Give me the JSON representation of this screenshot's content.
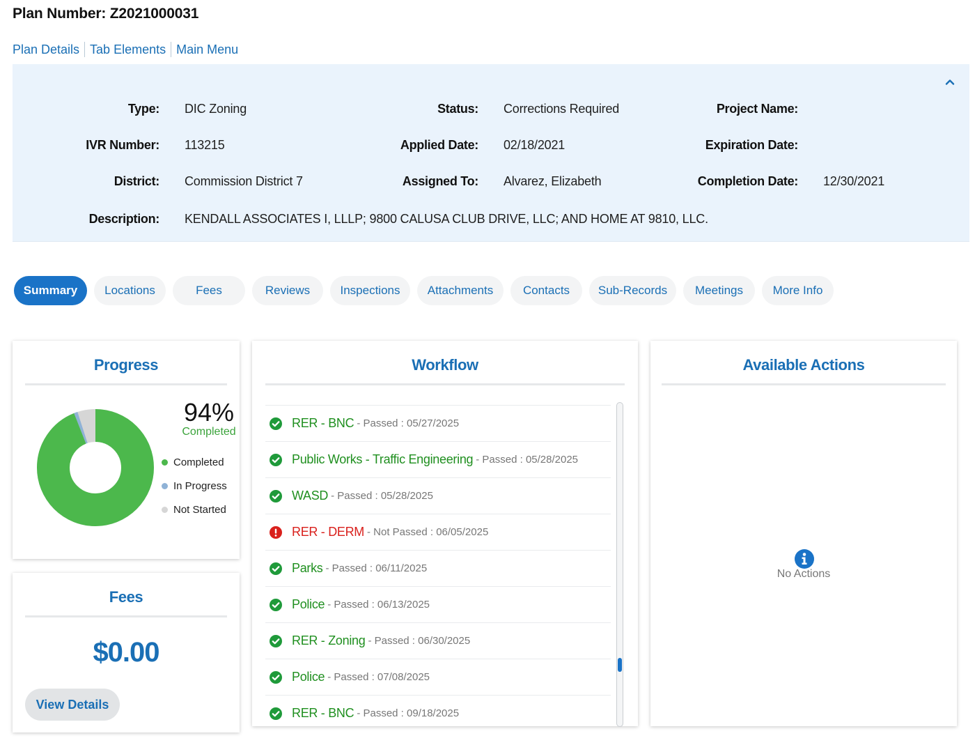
{
  "header": {
    "plan_number": "Plan Number: Z2021000031"
  },
  "links": [
    "Plan Details",
    "Tab Elements",
    "Main Menu"
  ],
  "details": {
    "type_label": "Type:",
    "type": "DIC Zoning",
    "status_label": "Status:",
    "status": "Corrections Required",
    "project_label": "Project Name:",
    "project": "",
    "ivr_label": "IVR Number:",
    "ivr": "113215",
    "applied_label": "Applied Date:",
    "applied": "02/18/2021",
    "expiration_label": "Expiration Date:",
    "expiration": "",
    "district_label": "District:",
    "district": "Commission District 7",
    "assigned_label": "Assigned To:",
    "assigned": "Alvarez, Elizabeth",
    "completion_label": "Completion Date:",
    "completion": "12/30/2021",
    "description_label": "Description:",
    "description": "KENDALL ASSOCIATES I, LLLP; 9800 CALUSA CLUB DRIVE, LLC; AND HOME AT 9810, LLC."
  },
  "tabs": [
    "Summary",
    "Locations",
    "Fees",
    "Reviews",
    "Inspections",
    "Attachments",
    "Contacts",
    "Sub-Records",
    "Meetings",
    "More Info"
  ],
  "active_tab": "Summary",
  "progress": {
    "title": "Progress",
    "percent_text": "94%",
    "completed_text": "Completed",
    "completed_fraction": 0.94,
    "in_progress_fraction": 0.01,
    "not_started_fraction": 0.05,
    "legend": [
      "Completed",
      "In Progress",
      "Not Started"
    ],
    "colors": {
      "completed": "#4cb84c",
      "in_progress": "#8fb2d6",
      "not_started": "#d6d6d6"
    }
  },
  "fees": {
    "title": "Fees",
    "amount": "$0.00",
    "button": "View Details"
  },
  "workflow": {
    "title": "Workflow",
    "items": [
      {
        "name": "RER - BNC",
        "meta": "- Passed : 05/27/2025",
        "status": "passed"
      },
      {
        "name": "Public Works - Traffic Engineering",
        "meta": "- Passed : 05/28/2025",
        "status": "passed"
      },
      {
        "name": "WASD",
        "meta": "- Passed : 05/28/2025",
        "status": "passed"
      },
      {
        "name": "RER - DERM",
        "meta": "- Not Passed : 06/05/2025",
        "status": "failed"
      },
      {
        "name": "Parks",
        "meta": "- Passed : 06/11/2025",
        "status": "passed"
      },
      {
        "name": "Police",
        "meta": "- Passed : 06/13/2025",
        "status": "passed"
      },
      {
        "name": "RER - Zoning",
        "meta": "- Passed : 06/30/2025",
        "status": "passed"
      },
      {
        "name": "Police",
        "meta": "- Passed : 07/08/2025",
        "status": "passed"
      },
      {
        "name": "RER - BNC",
        "meta": "- Passed : 09/18/2025",
        "status": "passed"
      }
    ]
  },
  "actions": {
    "title": "Available Actions",
    "empty_text": "No Actions",
    "icon": "info-icon"
  }
}
